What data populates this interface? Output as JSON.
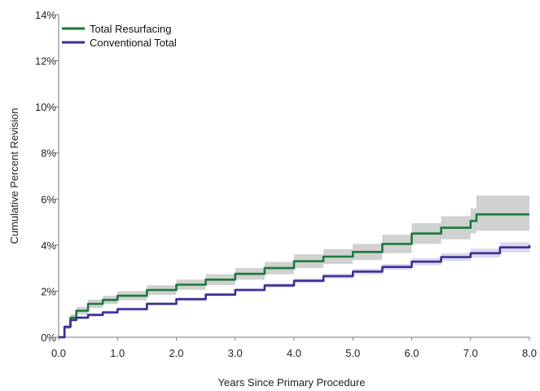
{
  "chart_data": {
    "type": "line",
    "xlabel": "Years Since Primary Procedure",
    "ylabel": "Cumulative Percent Revision",
    "xlim": [
      0,
      8
    ],
    "ylim": [
      0,
      14
    ],
    "x_ticks": [
      "0.0",
      "1.0",
      "2.0",
      "3.0",
      "4.0",
      "5.0",
      "6.0",
      "7.0",
      "8.0"
    ],
    "y_ticks": [
      "0%",
      "2%",
      "4%",
      "6%",
      "8%",
      "10%",
      "12%",
      "14%"
    ],
    "grid": false,
    "legend_position": "top-left",
    "series": [
      {
        "name": "Total Resurfacing",
        "color": "#1a7a3a",
        "band_color": "#cdcfcf",
        "x": [
          0,
          0.1,
          0.2,
          0.3,
          0.5,
          0.75,
          1.0,
          1.5,
          2.0,
          2.5,
          3.0,
          3.5,
          4.0,
          4.5,
          5.0,
          5.5,
          6.0,
          6.5,
          7.0,
          7.1,
          7.5,
          8.0
        ],
        "y": [
          0,
          0.45,
          0.85,
          1.15,
          1.45,
          1.62,
          1.8,
          2.05,
          2.28,
          2.5,
          2.75,
          3.0,
          3.3,
          3.5,
          3.7,
          4.05,
          4.5,
          4.75,
          5.05,
          5.33,
          5.33,
          5.33
        ],
        "lower": [
          0,
          0.35,
          0.7,
          0.98,
          1.27,
          1.44,
          1.6,
          1.84,
          2.06,
          2.26,
          2.5,
          2.73,
          3.0,
          3.18,
          3.35,
          3.65,
          4.05,
          4.25,
          4.5,
          4.62,
          4.62,
          4.62
        ],
        "upper": [
          0,
          0.55,
          1.0,
          1.32,
          1.63,
          1.8,
          2.0,
          2.26,
          2.5,
          2.74,
          3.0,
          3.27,
          3.6,
          3.82,
          4.05,
          4.45,
          4.95,
          5.25,
          5.6,
          6.15,
          6.15,
          6.15
        ]
      },
      {
        "name": "Conventional Total",
        "color": "#3a2f96",
        "band_color": "#d8d6ee",
        "x": [
          0,
          0.1,
          0.2,
          0.3,
          0.5,
          0.75,
          1.0,
          1.5,
          2.0,
          2.5,
          3.0,
          3.5,
          4.0,
          4.5,
          5.0,
          5.5,
          6.0,
          6.5,
          7.0,
          7.5,
          8.0
        ],
        "y": [
          0,
          0.45,
          0.75,
          0.85,
          0.97,
          1.08,
          1.22,
          1.45,
          1.65,
          1.85,
          2.05,
          2.25,
          2.45,
          2.65,
          2.85,
          3.05,
          3.28,
          3.48,
          3.65,
          3.9,
          4.0
        ],
        "lower": [
          0,
          0.4,
          0.68,
          0.78,
          0.9,
          1.01,
          1.15,
          1.38,
          1.58,
          1.78,
          1.97,
          2.16,
          2.35,
          2.54,
          2.73,
          2.92,
          3.13,
          3.31,
          3.46,
          3.68,
          3.76
        ],
        "upper": [
          0,
          0.5,
          0.82,
          0.92,
          1.04,
          1.15,
          1.29,
          1.52,
          1.72,
          1.92,
          2.13,
          2.34,
          2.55,
          2.76,
          2.97,
          3.18,
          3.43,
          3.65,
          3.84,
          4.12,
          4.24
        ]
      }
    ]
  }
}
